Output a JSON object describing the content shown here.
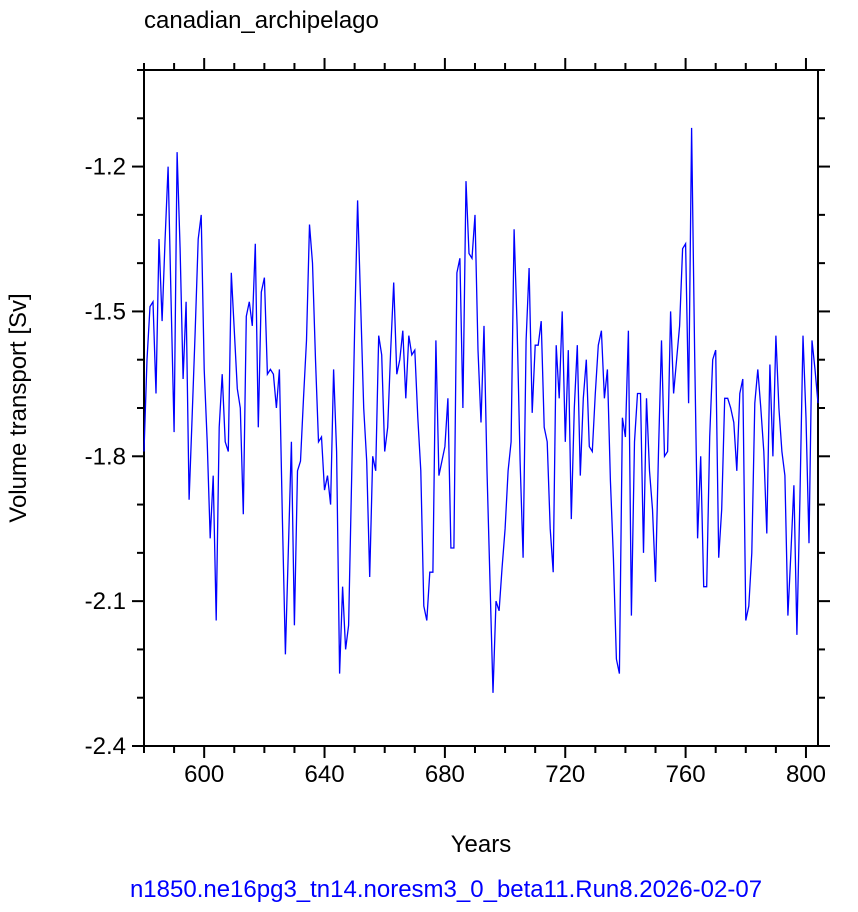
{
  "chart_data": {
    "type": "line",
    "title": "canadian_archipelago",
    "xlabel": "Years",
    "ylabel": "Volume transport [Sv]",
    "footer": "n1850.ne16pg3_tn14.noresm3_0_beta11.Run8.2026-02-07",
    "xlim": [
      580,
      804
    ],
    "ylim": [
      -2.4,
      -1.0
    ],
    "xticks": [
      600,
      640,
      680,
      720,
      760,
      800
    ],
    "yticks": [
      -2.4,
      -2.1,
      -1.8,
      -1.5,
      -1.2
    ],
    "xminorticks": [
      580,
      590,
      610,
      620,
      630,
      650,
      660,
      670,
      690,
      700,
      710,
      730,
      740,
      750,
      770,
      780,
      790
    ],
    "yminorticks": [
      -2.3,
      -2.2,
      -2.0,
      -1.9,
      -1.7,
      -1.6,
      -1.4,
      -1.3,
      -1.1,
      -1.0
    ],
    "series": [
      {
        "name": "transport",
        "color": "#0000ff",
        "x": [
          580,
          581,
          582,
          583,
          584,
          585,
          586,
          587,
          588,
          589,
          590,
          591,
          592,
          593,
          594,
          595,
          596,
          597,
          598,
          599,
          600,
          601,
          602,
          603,
          604,
          605,
          606,
          607,
          608,
          609,
          610,
          611,
          612,
          613,
          614,
          615,
          616,
          617,
          618,
          619,
          620,
          621,
          622,
          623,
          624,
          625,
          626,
          627,
          628,
          629,
          630,
          631,
          632,
          633,
          634,
          635,
          636,
          637,
          638,
          639,
          640,
          641,
          642,
          643,
          644,
          645,
          646,
          647,
          648,
          649,
          650,
          651,
          652,
          653,
          654,
          655,
          656,
          657,
          658,
          659,
          660,
          661,
          662,
          663,
          664,
          665,
          666,
          667,
          668,
          669,
          670,
          671,
          672,
          673,
          674,
          675,
          676,
          677,
          678,
          679,
          680,
          681,
          682,
          683,
          684,
          685,
          686,
          687,
          688,
          689,
          690,
          691,
          692,
          693,
          694,
          695,
          696,
          697,
          698,
          699,
          700,
          701,
          702,
          703,
          704,
          705,
          706,
          707,
          708,
          709,
          710,
          711,
          712,
          713,
          714,
          715,
          716,
          717,
          718,
          719,
          720,
          721,
          722,
          723,
          724,
          725,
          726,
          727,
          728,
          729,
          730,
          731,
          732,
          733,
          734,
          735,
          736,
          737,
          738,
          739,
          740,
          741,
          742,
          743,
          744,
          745,
          746,
          747,
          748,
          749,
          750,
          751,
          752,
          753,
          754,
          755,
          756,
          757,
          758,
          759,
          760,
          761,
          762,
          763,
          764,
          765,
          766,
          767,
          768,
          769,
          770,
          771,
          772,
          773,
          774,
          775,
          776,
          777,
          778,
          779,
          780,
          781,
          782,
          783,
          784,
          785,
          786,
          787,
          788,
          789,
          790,
          791,
          792,
          793,
          794,
          795,
          796,
          797,
          798,
          799,
          800,
          801,
          802,
          803,
          804
        ],
        "values": [
          -1.79,
          -1.6,
          -1.49,
          -1.48,
          -1.67,
          -1.35,
          -1.52,
          -1.35,
          -1.2,
          -1.48,
          -1.75,
          -1.17,
          -1.37,
          -1.64,
          -1.48,
          -1.89,
          -1.72,
          -1.54,
          -1.35,
          -1.3,
          -1.62,
          -1.77,
          -1.97,
          -1.84,
          -2.14,
          -1.74,
          -1.63,
          -1.77,
          -1.79,
          -1.42,
          -1.54,
          -1.66,
          -1.7,
          -1.92,
          -1.51,
          -1.48,
          -1.53,
          -1.36,
          -1.74,
          -1.46,
          -1.43,
          -1.63,
          -1.62,
          -1.63,
          -1.7,
          -1.62,
          -1.93,
          -2.21,
          -1.99,
          -1.77,
          -2.15,
          -1.83,
          -1.81,
          -1.68,
          -1.56,
          -1.32,
          -1.4,
          -1.6,
          -1.77,
          -1.76,
          -1.87,
          -1.84,
          -1.9,
          -1.62,
          -1.79,
          -2.25,
          -2.07,
          -2.2,
          -2.15,
          -1.85,
          -1.54,
          -1.27,
          -1.48,
          -1.7,
          -1.81,
          -2.05,
          -1.8,
          -1.83,
          -1.55,
          -1.59,
          -1.79,
          -1.74,
          -1.58,
          -1.44,
          -1.63,
          -1.6,
          -1.54,
          -1.68,
          -1.55,
          -1.59,
          -1.58,
          -1.72,
          -1.83,
          -2.11,
          -2.14,
          -2.04,
          -2.04,
          -1.56,
          -1.84,
          -1.81,
          -1.78,
          -1.68,
          -1.99,
          -1.99,
          -1.42,
          -1.39,
          -1.7,
          -1.23,
          -1.38,
          -1.39,
          -1.3,
          -1.58,
          -1.73,
          -1.53,
          -1.83,
          -2.06,
          -2.29,
          -2.1,
          -2.12,
          -2.03,
          -1.95,
          -1.83,
          -1.77,
          -1.33,
          -1.53,
          -1.81,
          -2.01,
          -1.56,
          -1.41,
          -1.71,
          -1.57,
          -1.57,
          -1.52,
          -1.74,
          -1.77,
          -1.95,
          -2.04,
          -1.57,
          -1.68,
          -1.5,
          -1.77,
          -1.58,
          -1.93,
          -1.7,
          -1.57,
          -1.84,
          -1.68,
          -1.6,
          -1.78,
          -1.79,
          -1.67,
          -1.57,
          -1.54,
          -1.68,
          -1.62,
          -1.85,
          -2.01,
          -2.22,
          -2.25,
          -1.72,
          -1.76,
          -1.54,
          -2.13,
          -1.77,
          -1.67,
          -1.67,
          -2.0,
          -1.68,
          -1.83,
          -1.91,
          -2.06,
          -1.79,
          -1.56,
          -1.8,
          -1.79,
          -1.5,
          -1.67,
          -1.6,
          -1.53,
          -1.37,
          -1.36,
          -1.69,
          -1.12,
          -1.58,
          -1.97,
          -1.8,
          -2.07,
          -2.07,
          -1.76,
          -1.6,
          -1.58,
          -2.01,
          -1.91,
          -1.68,
          -1.68,
          -1.7,
          -1.73,
          -1.83,
          -1.67,
          -1.64,
          -2.14,
          -2.11,
          -2.0,
          -1.69,
          -1.62,
          -1.7,
          -1.79,
          -1.96,
          -1.61,
          -1.8,
          -1.55,
          -1.7,
          -1.79,
          -1.84,
          -2.13,
          -2.0,
          -1.86,
          -2.17,
          -1.89,
          -1.55,
          -1.72,
          -1.98,
          -1.56,
          -1.62,
          -1.69
        ]
      }
    ]
  }
}
